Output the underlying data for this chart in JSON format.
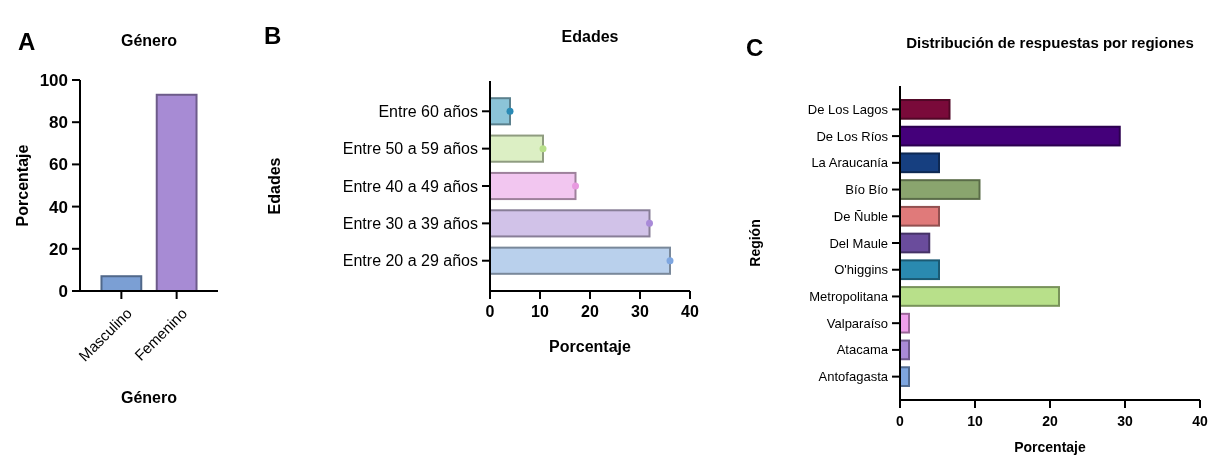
{
  "chart_data": [
    {
      "type": "bar",
      "title": "Género",
      "xlabel": "Género",
      "ylabel": "Porcentaje",
      "annotations": [
        "A"
      ],
      "categories": [
        "Masculino",
        "Femenino"
      ],
      "values": [
        7,
        93
      ],
      "colors": [
        "#7b9fd4",
        "#a78bd4"
      ],
      "ylim": [
        0,
        100
      ],
      "yticks": [
        0,
        20,
        40,
        60,
        80,
        100
      ],
      "grid": false
    },
    {
      "type": "bar",
      "orientation": "horizontal",
      "title": "Edades",
      "xlabel": "Porcentaje",
      "ylabel": "Edades",
      "annotations": [
        "B"
      ],
      "categories": [
        "Entre 60 años",
        "Entre 50 a 59 años",
        "Entre 40 a 49 años",
        "Entre 30 a 39 años",
        "Entre 20 a 29 años"
      ],
      "series": [
        {
          "type": "bar",
          "values": [
            4,
            10.6,
            17.1,
            31.9,
            36
          ],
          "colors": [
            "#8cc4d8",
            "#dcefc4",
            "#f2c6f0",
            "#d1c2e8",
            "#b9d0ec"
          ]
        },
        {
          "type": "scatter",
          "values": [
            4,
            10.6,
            17.1,
            31.9,
            36
          ],
          "colors": [
            "#2a8ab5",
            "#b8e08a",
            "#e89ae0",
            "#a98ad8",
            "#7ea6e0"
          ]
        }
      ],
      "marker": "circle",
      "xlim": [
        0,
        40
      ],
      "xticks": [
        0,
        10,
        20,
        30,
        40
      ],
      "grid": false
    },
    {
      "type": "bar",
      "orientation": "horizontal",
      "title": "Distribución de respuestas por regiones",
      "xlabel": "Porcentaje",
      "ylabel": "Región",
      "annotations": [
        "C"
      ],
      "categories": [
        "De Los Lagos",
        "De Los Ríos",
        "La Araucanía",
        "Bío Bío",
        "De Ñuble",
        "Del Maule",
        "O'higgins",
        "Metropolitana",
        "Valparaíso",
        "Atacama",
        "Antofagasta"
      ],
      "values": [
        6.6,
        29.3,
        5.2,
        10.6,
        5.2,
        3.9,
        5.2,
        21.2,
        1.2,
        1.2,
        1.2
      ],
      "colors": [
        "#7a0a3a",
        "#44007a",
        "#163f80",
        "#8aa56e",
        "#e07a7a",
        "#6a4c9c",
        "#2a8ab0",
        "#b8e08a",
        "#f0a0ec",
        "#a98ad8",
        "#7ea6e0"
      ],
      "xlim": [
        0,
        40
      ],
      "xticks": [
        0,
        10,
        20,
        30,
        40
      ],
      "grid": false
    }
  ]
}
